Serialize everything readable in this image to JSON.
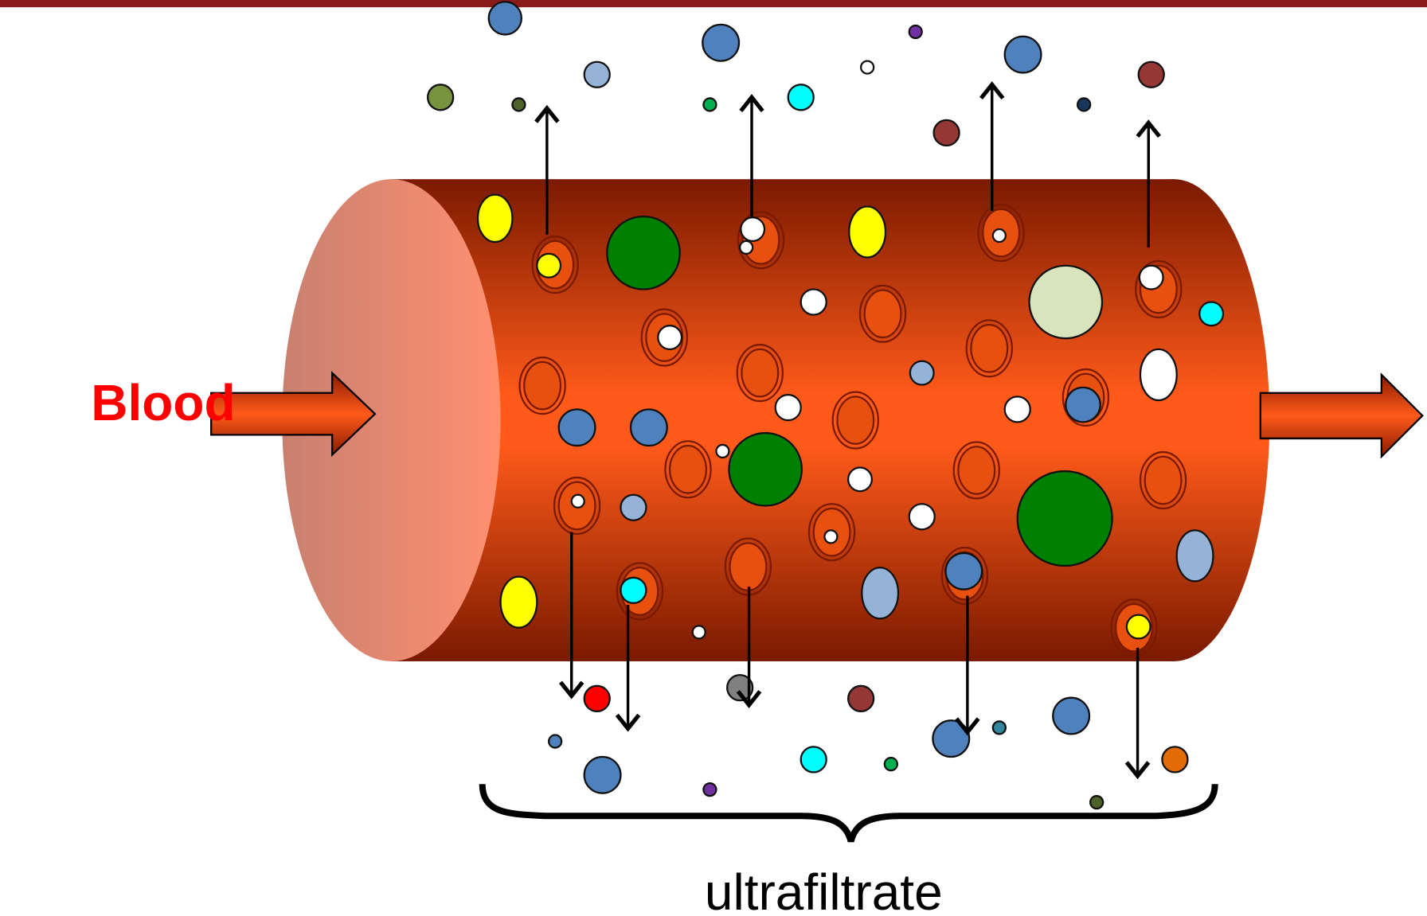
{
  "labels": {
    "input": "Blood",
    "output": "ultrafiltrate"
  }
}
